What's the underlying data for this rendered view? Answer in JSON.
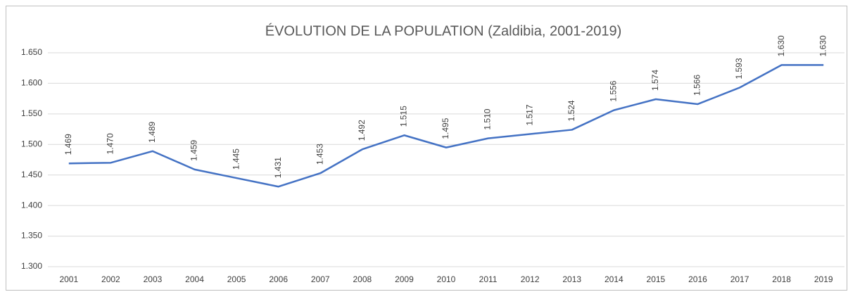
{
  "chart_data": {
    "type": "line",
    "title": "ÉVOLUTION DE LA POPULATION (Zaldibia, 2001-2019)",
    "categories": [
      "2001",
      "2002",
      "2003",
      "2004",
      "2005",
      "2006",
      "2007",
      "2008",
      "2009",
      "2010",
      "2011",
      "2012",
      "2013",
      "2014",
      "2015",
      "2016",
      "2017",
      "2018",
      "2019"
    ],
    "series": [
      {
        "name": "Population",
        "color": "#4472c4",
        "values": [
          1469,
          1470,
          1489,
          1459,
          1445,
          1431,
          1453,
          1492,
          1515,
          1495,
          1510,
          1517,
          1524,
          1556,
          1574,
          1566,
          1593,
          1630,
          1630
        ],
        "value_labels": [
          "1.469",
          "1.470",
          "1.489",
          "1.459",
          "1.445",
          "1.431",
          "1.453",
          "1.492",
          "1.515",
          "1.495",
          "1.510",
          "1.517",
          "1.524",
          "1.556",
          "1.574",
          "1.566",
          "1.593",
          "1.630",
          "1.630"
        ]
      }
    ],
    "ylim": [
      1300,
      1650
    ],
    "yticks": [
      {
        "value": 1300,
        "label": "1.300"
      },
      {
        "value": 1350,
        "label": "1.350"
      },
      {
        "value": 1400,
        "label": "1.400"
      },
      {
        "value": 1450,
        "label": "1.450"
      },
      {
        "value": 1500,
        "label": "1.500"
      },
      {
        "value": 1550,
        "label": "1.550"
      },
      {
        "value": 1600,
        "label": "1.600"
      },
      {
        "value": 1650,
        "label": "1.650"
      }
    ],
    "grid": true
  }
}
